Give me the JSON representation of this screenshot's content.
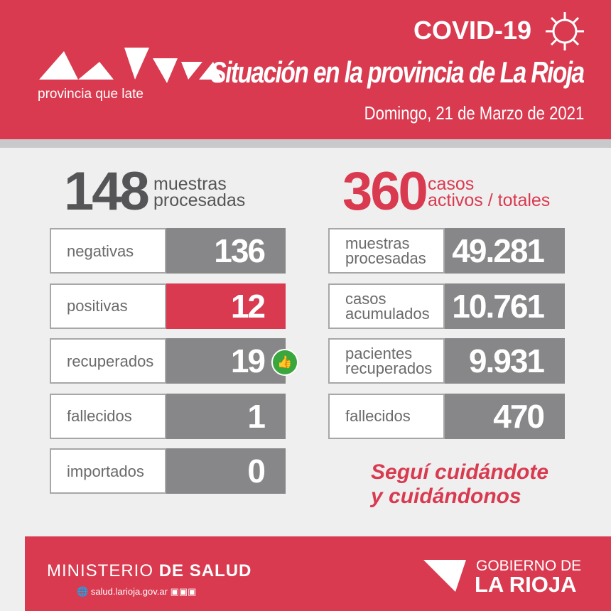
{
  "header": {
    "logo_tagline": "provincia que late",
    "badge": "COVID-19",
    "title": "Situación en la provincia de La Rioja",
    "date": "Domingo, 21 de Marzo de 2021"
  },
  "left": {
    "number": "148",
    "caption": [
      "muestras",
      "procesadas"
    ],
    "rows": [
      {
        "label": [
          "negativas"
        ],
        "value": "136"
      },
      {
        "label": [
          "positivas"
        ],
        "value": "12"
      },
      {
        "label": [
          "recuperados"
        ],
        "value": "19"
      },
      {
        "label": [
          "fallecidos"
        ],
        "value": "1"
      },
      {
        "label": [
          "importados"
        ],
        "value": "0"
      }
    ]
  },
  "right": {
    "number": "360",
    "caption": [
      "casos",
      "activos / totales"
    ],
    "rows": [
      {
        "label": [
          "muestras",
          "procesadas"
        ],
        "value": "49.281"
      },
      {
        "label": [
          "casos",
          "acumulados"
        ],
        "value": "10.761"
      },
      {
        "label": [
          "pacientes",
          "recuperados"
        ],
        "value": "9.931"
      },
      {
        "label": [
          "fallecidos"
        ],
        "value": "470"
      }
    ]
  },
  "slogan": [
    "Seguí cuidándote",
    "y cuidándonos"
  ],
  "footer": {
    "ministry": "MINISTERIO",
    "ministry_bold": "DE SALUD",
    "website": "salud.larioja.gov.ar",
    "gov_line1": "GOBIERNO DE",
    "gov_line2": "LA RIOJA"
  }
}
